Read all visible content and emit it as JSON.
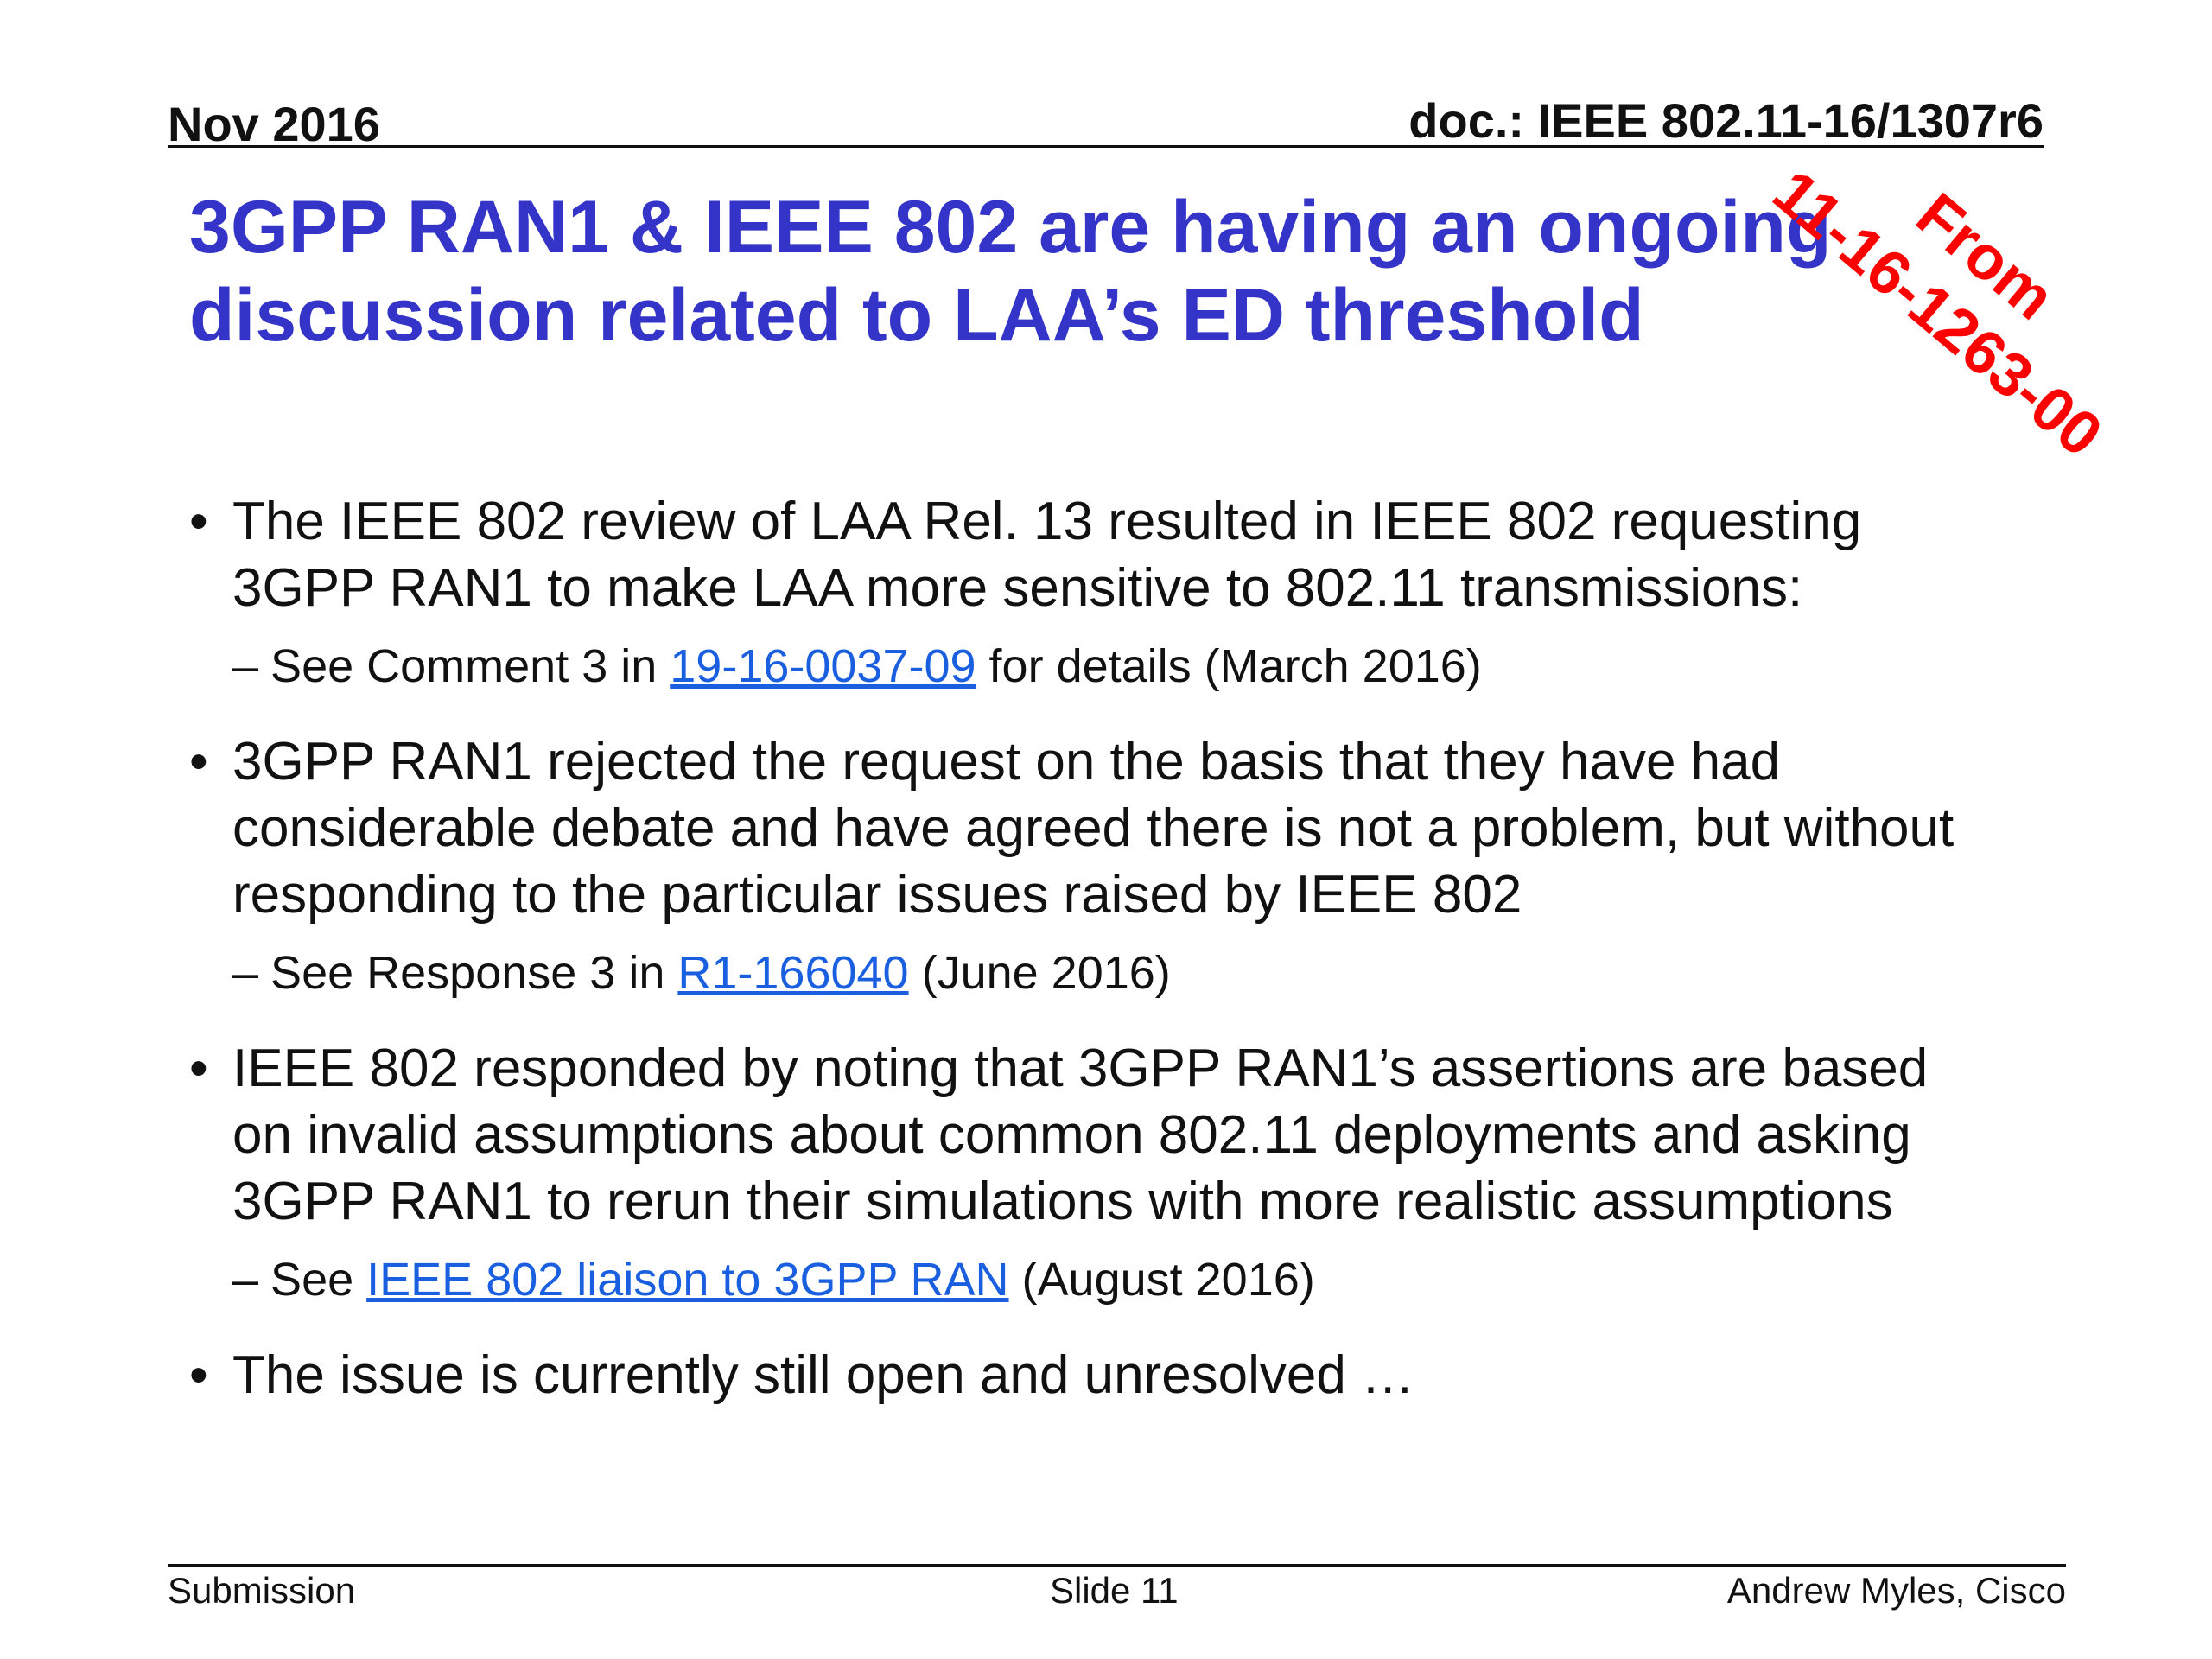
{
  "header": {
    "date": "Nov 2016",
    "doc": "doc.: IEEE 802.11-16/1307r6"
  },
  "title": {
    "line1": "3GPP RAN1 & IEEE 802 are having an ongoing",
    "line2": "discussion related to LAA’s ED threshold"
  },
  "stamp": {
    "line1": "From",
    "line2": "11-16-1263-00",
    "color": "#ff0000"
  },
  "bullets": [
    {
      "marker": "•",
      "lines": [
        "The IEEE 802 review of LAA Rel. 13 resulted in IEEE 802 requesting",
        "3GPP RAN1 to make LAA more sensitive to 802.11 transmissions:"
      ],
      "sub": {
        "dash": "–",
        "prefix": "See Comment 3 in ",
        "link": "19-16-0037-09",
        "suffix": " for details (March 2016)"
      }
    },
    {
      "marker": "•",
      "lines": [
        "3GPP RAN1 rejected the request on the basis that they have had",
        "considerable debate and have agreed there is not a problem, but without",
        "responding to the particular issues raised by IEEE 802"
      ],
      "sub": {
        "dash": "–",
        "prefix": "See Response 3 in ",
        "link": "R1-166040",
        "suffix": " (June 2016)"
      }
    },
    {
      "marker": "•",
      "lines": [
        "IEEE 802 responded by noting that 3GPP RAN1’s assertions are based",
        "on invalid assumptions about common 802.11 deployments and asking",
        "3GPP RAN1 to rerun their simulations with more realistic assumptions"
      ],
      "sub": {
        "dash": "–",
        "prefix": "See ",
        "link": "IEEE 802 liaison to 3GPP RAN",
        "suffix": " (August 2016)"
      }
    },
    {
      "marker": "•",
      "lines": [
        "The issue is currently still open and unresolved …"
      ]
    }
  ],
  "footer": {
    "left": "Submission",
    "center": "Slide 11",
    "right": "Andrew Myles, Cisco"
  },
  "colors": {
    "title": "#3434c8",
    "link": "#1a5fe0",
    "stamp": "#ff0000"
  }
}
